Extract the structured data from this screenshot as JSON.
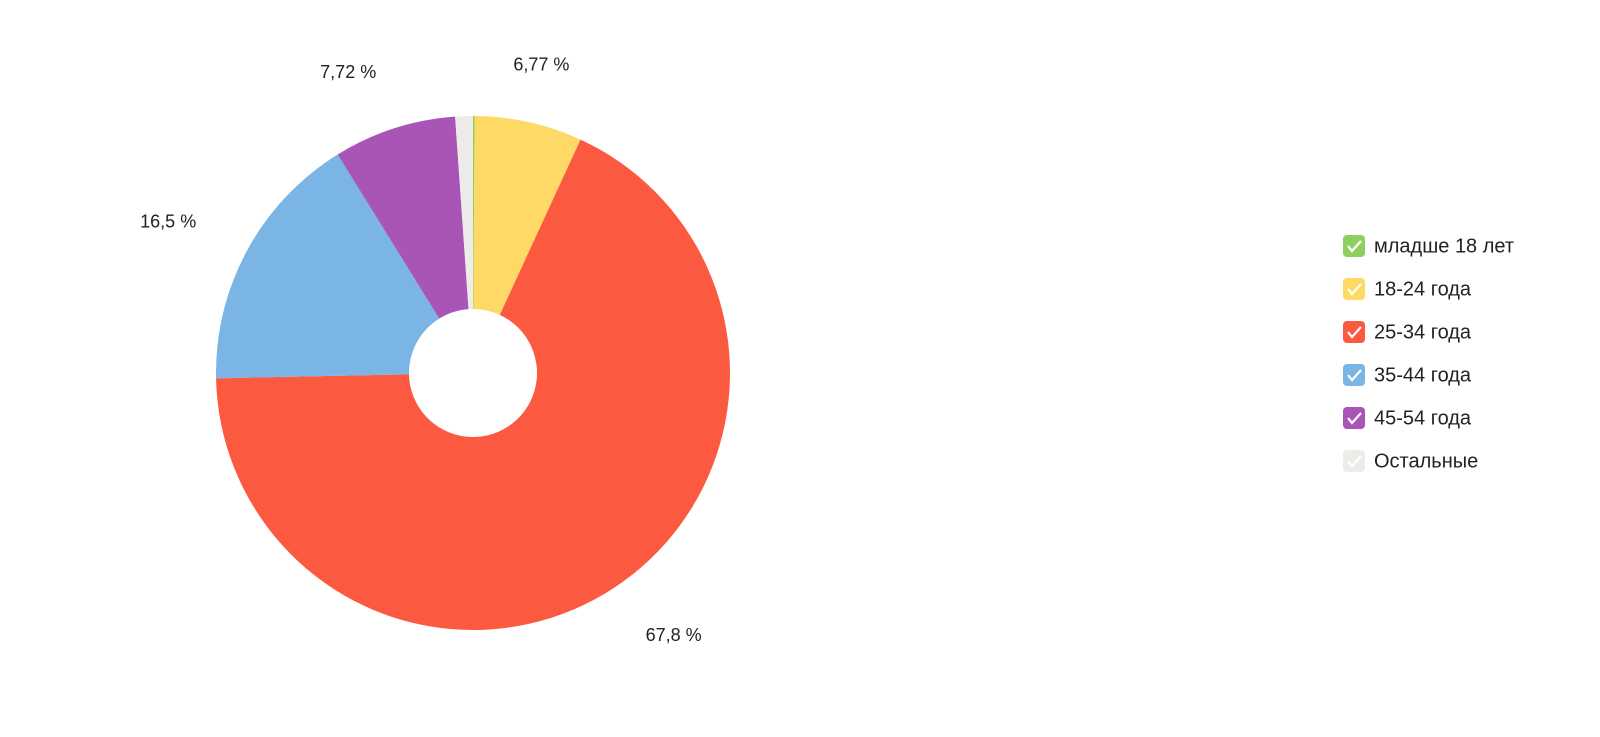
{
  "chart_data": {
    "type": "donut",
    "categories": [
      "младше 18 лет",
      "18-24 года",
      "25-34 года",
      "35-44 года",
      "45-54 года",
      "Остальные"
    ],
    "values": [
      0.1,
      6.77,
      67.8,
      16.5,
      7.72,
      1.11
    ],
    "value_labels": [
      null,
      "6,77 %",
      "67,8 %",
      "16,5 %",
      "7,72 %",
      null
    ],
    "colors": [
      "#8fcf5f",
      "#ffd966",
      "#fc5a40",
      "#7ab5e6",
      "#a855b7",
      "#eeece8"
    ],
    "legend": "right"
  }
}
